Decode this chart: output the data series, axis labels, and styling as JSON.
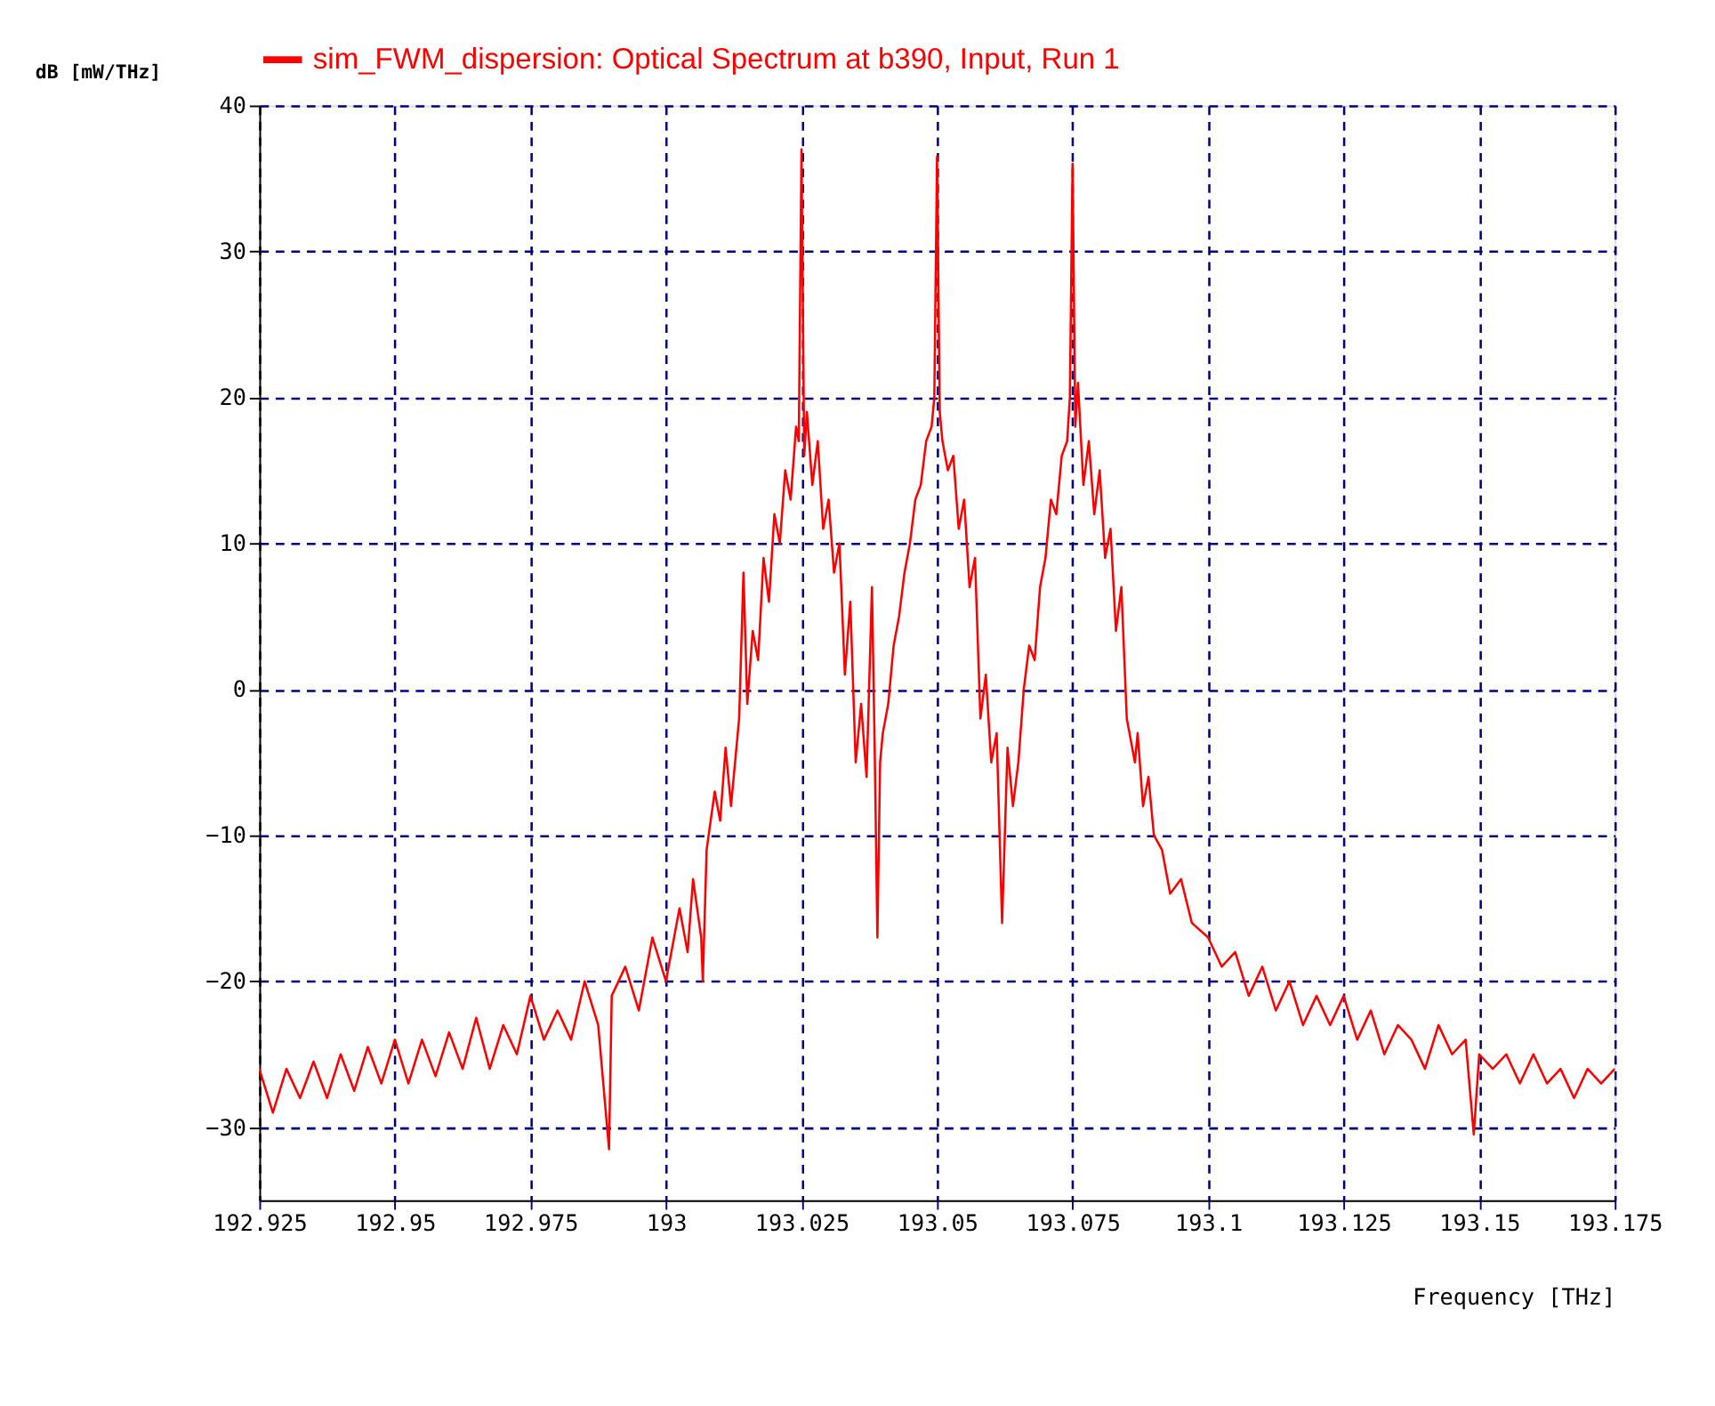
{
  "chart_data": {
    "type": "line",
    "xlabel": "Frequency [THz]",
    "ylabel": "dB [mW/THz]",
    "legend": "top",
    "xlim": [
      192.925,
      193.175
    ],
    "xticks": [
      192.925,
      192.95,
      192.975,
      193,
      193.025,
      193.05,
      193.075,
      193.1,
      193.125,
      193.15,
      193.175
    ],
    "ylim": [
      -35,
      40
    ],
    "yticks": [
      -30,
      -20,
      -10,
      0,
      10,
      20,
      30,
      40
    ],
    "grid": true,
    "series": [
      {
        "name": "sim_FWM_dispersion: Optical Spectrum at b390, Input, Run 1",
        "color": "#ff0000",
        "x": [
          192.925,
          192.9275,
          192.93,
          192.9325,
          192.935,
          192.9375,
          192.94,
          192.9425,
          192.945,
          192.9475,
          192.95,
          192.9525,
          192.955,
          192.9575,
          192.96,
          192.9625,
          192.965,
          192.9675,
          192.97,
          192.9725,
          192.975,
          192.9775,
          192.98,
          192.9825,
          192.985,
          192.9875,
          192.9895,
          192.99,
          192.9925,
          192.995,
          192.9975,
          193.0,
          193.0025,
          193.004,
          193.005,
          193.0065,
          193.0068,
          193.0075,
          193.009,
          193.01,
          193.011,
          193.012,
          193.0135,
          193.0143,
          193.015,
          193.016,
          193.017,
          193.018,
          193.019,
          193.02,
          193.021,
          193.022,
          193.023,
          193.024,
          193.0245,
          193.025,
          193.0255,
          193.026,
          193.027,
          193.028,
          193.029,
          193.03,
          193.031,
          193.032,
          193.033,
          193.034,
          193.035,
          193.036,
          193.037,
          193.038,
          193.0385,
          193.039,
          193.0395,
          193.04,
          193.041,
          193.042,
          193.043,
          193.044,
          193.045,
          193.046,
          193.047,
          193.048,
          193.049,
          193.0495,
          193.05,
          193.0505,
          193.051,
          193.052,
          193.053,
          193.054,
          193.055,
          193.056,
          193.057,
          193.058,
          193.059,
          193.06,
          193.061,
          193.062,
          193.063,
          193.064,
          193.065,
          193.066,
          193.067,
          193.068,
          193.069,
          193.07,
          193.071,
          193.072,
          193.073,
          193.074,
          193.0745,
          193.075,
          193.0755,
          193.076,
          193.077,
          193.078,
          193.079,
          193.08,
          193.081,
          193.082,
          193.083,
          193.084,
          193.085,
          193.0865,
          193.087,
          193.088,
          193.089,
          193.09,
          193.0915,
          193.093,
          193.095,
          193.097,
          193.1,
          193.1025,
          193.105,
          193.1075,
          193.11,
          193.1125,
          193.115,
          193.1175,
          193.12,
          193.1225,
          193.125,
          193.1275,
          193.13,
          193.1325,
          193.135,
          193.1375,
          193.14,
          193.1425,
          193.145,
          193.1475,
          193.149,
          193.15,
          193.1525,
          193.155,
          193.1575,
          193.16,
          193.1625,
          193.165,
          193.1675,
          193.17,
          193.1725,
          193.175
        ],
        "values": [
          -26,
          -29,
          -26,
          -28,
          -25.5,
          -28,
          -25,
          -27.5,
          -24.5,
          -27,
          -24,
          -27,
          -24,
          -26.5,
          -23.5,
          -26,
          -22.5,
          -26,
          -23,
          -25,
          -21,
          -24,
          -22,
          -24,
          -20,
          -23,
          -31.5,
          -21,
          -19,
          -22,
          -17,
          -20,
          -15,
          -18,
          -13,
          -17,
          -20,
          -11,
          -7,
          -9,
          -4,
          -8,
          -2,
          8,
          -1,
          4,
          2,
          9,
          6,
          12,
          10,
          15,
          13,
          18,
          17,
          37,
          16,
          19,
          14,
          17,
          11,
          13,
          8,
          10,
          1,
          6,
          -5,
          -1,
          -6,
          7,
          -4,
          -17,
          -5,
          -3,
          -1,
          3,
          5,
          8,
          10,
          13,
          14,
          17,
          18,
          20,
          36.5,
          19,
          17,
          15,
          16,
          11,
          13,
          7,
          9,
          -2,
          1,
          -5,
          -3,
          -16,
          -4,
          -8,
          -5,
          0,
          3,
          2,
          7,
          9,
          13,
          12,
          16,
          17,
          20,
          36,
          18,
          21,
          14,
          17,
          12,
          15,
          9,
          11,
          4,
          7,
          -2,
          -5,
          -3,
          -8,
          -6,
          -10,
          -11,
          -14,
          -13,
          -16,
          -17,
          -19,
          -18,
          -21,
          -19,
          -22,
          -20,
          -23,
          -21,
          -23,
          -21,
          -24,
          -22,
          -25,
          -23,
          -24,
          -26,
          -23,
          -25,
          -24,
          -30.5,
          -25,
          -26,
          -25,
          -27,
          -25,
          -27,
          -26,
          -28,
          -26,
          -27,
          -26
        ]
      }
    ]
  }
}
